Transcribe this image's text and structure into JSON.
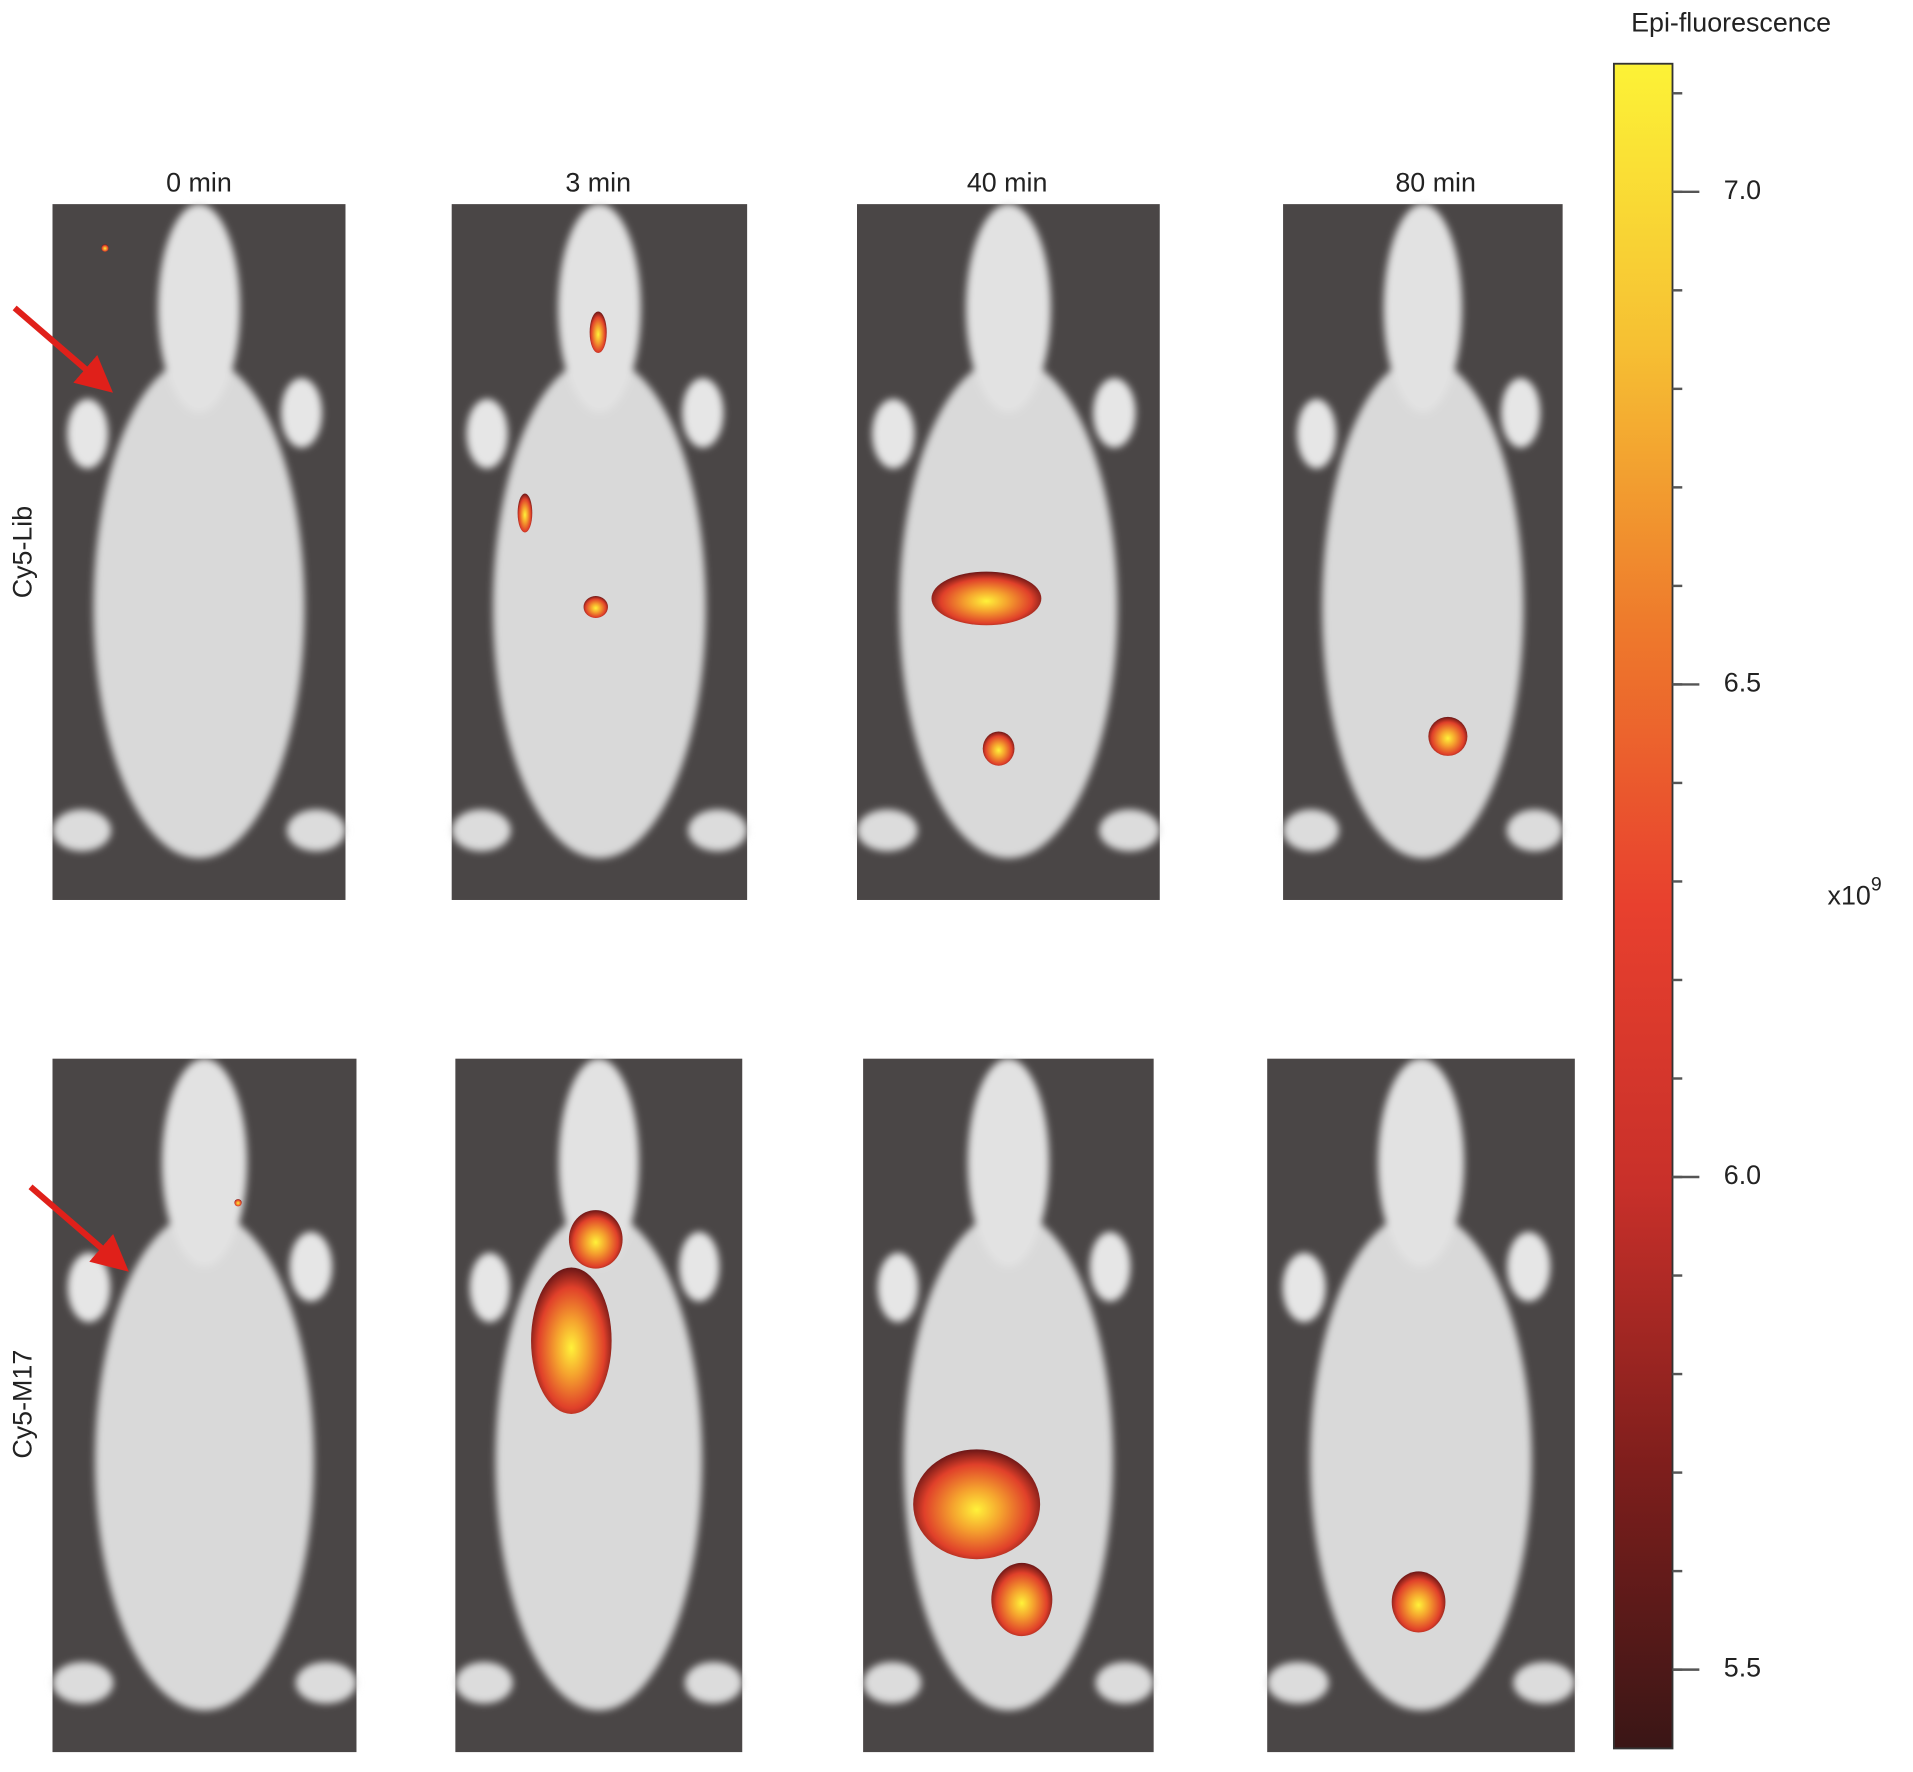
{
  "columns": [
    "0 min",
    "3 min",
    "40 min",
    "80 min"
  ],
  "rows": [
    "Cy5-Lib",
    "Cy5-M17"
  ],
  "colorbar": {
    "title": "Epi-fluorescence",
    "lim": [
      5.42,
      7.13
    ],
    "ticks": [
      {
        "value": 5.5,
        "label": "5.5"
      },
      {
        "value": 6,
        "label": "6.0"
      },
      {
        "value": 6.5,
        "label": "6.5"
      },
      {
        "value": 7,
        "label": "7.0"
      }
    ],
    "unit": {
      "base": "x10",
      "exponent": "9"
    },
    "colormap": [
      "#3a1616",
      "#7e1e1c",
      "#c8302a",
      "#e8402e",
      "#ee7a2c",
      "#f6c033",
      "#fcf236"
    ]
  }
}
